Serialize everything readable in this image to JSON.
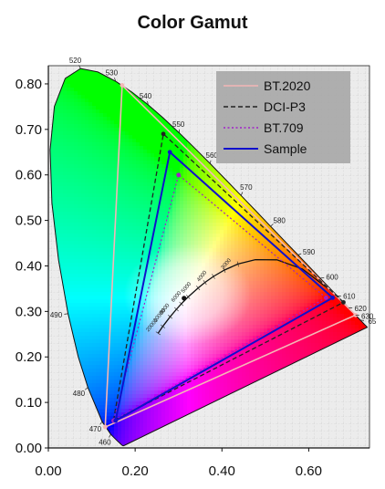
{
  "chart_data": {
    "type": "scatter",
    "title": "Color Gamut",
    "xlabel": "",
    "ylabel": "",
    "xlim": [
      0.0,
      0.74
    ],
    "ylim": [
      0.0,
      0.84
    ],
    "grid": true,
    "legend_position": "top-right",
    "x_ticks": [
      "0.00",
      "0.20",
      "0.40",
      "0.60"
    ],
    "x_tick_values": [
      0.0,
      0.2,
      0.4,
      0.6
    ],
    "y_ticks": [
      "0.00",
      "0.10",
      "0.20",
      "0.30",
      "0.40",
      "0.50",
      "0.60",
      "0.70",
      "0.80"
    ],
    "y_tick_values": [
      0.0,
      0.1,
      0.2,
      0.3,
      0.4,
      0.5,
      0.6,
      0.7,
      0.8
    ],
    "series": [
      {
        "name": "BT.2020",
        "color": "#f4b6b6",
        "dash": "solid",
        "points": [
          [
            0.708,
            0.292
          ],
          [
            0.17,
            0.797
          ],
          [
            0.131,
            0.046
          ]
        ]
      },
      {
        "name": "DCI-P3",
        "color": "#222222",
        "dash": "dashed",
        "points": [
          [
            0.68,
            0.32
          ],
          [
            0.265,
            0.69
          ],
          [
            0.15,
            0.06
          ]
        ]
      },
      {
        "name": "BT.709",
        "color": "#a020c8",
        "dash": "dotted",
        "points": [
          [
            0.64,
            0.33
          ],
          [
            0.3,
            0.6
          ],
          [
            0.15,
            0.06
          ]
        ]
      },
      {
        "name": "Sample",
        "color": "#1010cc",
        "dash": "solid",
        "points": [
          [
            0.655,
            0.33
          ],
          [
            0.28,
            0.65
          ],
          [
            0.155,
            0.06
          ]
        ]
      }
    ],
    "spectral_locus": [
      [
        0.1741,
        0.005
      ],
      [
        0.173,
        0.0048
      ],
      [
        0.1714,
        0.0051
      ],
      [
        0.1689,
        0.0069
      ],
      [
        0.1644,
        0.0109
      ],
      [
        0.1566,
        0.0177
      ],
      [
        0.144,
        0.0297
      ],
      [
        0.1241,
        0.0578
      ],
      [
        0.0913,
        0.1327
      ],
      [
        0.0687,
        0.2007
      ],
      [
        0.0454,
        0.295
      ],
      [
        0.0235,
        0.4127
      ],
      [
        0.0082,
        0.5384
      ],
      [
        0.0039,
        0.6548
      ],
      [
        0.0139,
        0.7502
      ],
      [
        0.0389,
        0.812
      ],
      [
        0.0743,
        0.8338
      ],
      [
        0.1142,
        0.8262
      ],
      [
        0.1547,
        0.8059
      ],
      [
        0.1929,
        0.7816
      ],
      [
        0.2296,
        0.7543
      ],
      [
        0.2658,
        0.7243
      ],
      [
        0.3016,
        0.6923
      ],
      [
        0.3373,
        0.6589
      ],
      [
        0.3731,
        0.6245
      ],
      [
        0.4087,
        0.5896
      ],
      [
        0.4441,
        0.5547
      ],
      [
        0.4788,
        0.5202
      ],
      [
        0.5125,
        0.4866
      ],
      [
        0.5448,
        0.4544
      ],
      [
        0.5752,
        0.4242
      ],
      [
        0.6029,
        0.3965
      ],
      [
        0.627,
        0.3725
      ],
      [
        0.6482,
        0.3514
      ],
      [
        0.6658,
        0.334
      ],
      [
        0.6801,
        0.3197
      ],
      [
        0.6915,
        0.3083
      ],
      [
        0.7006,
        0.2993
      ],
      [
        0.7079,
        0.292
      ],
      [
        0.714,
        0.2859
      ],
      [
        0.719,
        0.2809
      ],
      [
        0.723,
        0.277
      ],
      [
        0.726,
        0.274
      ],
      [
        0.7283,
        0.2717
      ],
      [
        0.73,
        0.27
      ],
      [
        0.7311,
        0.2689
      ],
      [
        0.732,
        0.268
      ],
      [
        0.7327,
        0.2673
      ],
      [
        0.7334,
        0.2666
      ],
      [
        0.734,
        0.266
      ],
      [
        0.7344,
        0.2656
      ],
      [
        0.7346,
        0.2654
      ],
      [
        0.7347,
        0.2653
      ]
    ],
    "planckian_locus": [
      [
        0.6528,
        0.3444
      ],
      [
        0.5857,
        0.3931
      ],
      [
        0.5267,
        0.4133
      ],
      [
        0.477,
        0.4137
      ],
      [
        0.4369,
        0.4041
      ],
      [
        0.4053,
        0.3907
      ],
      [
        0.3805,
        0.3768
      ],
      [
        0.3608,
        0.3636
      ],
      [
        0.3451,
        0.3516
      ],
      [
        0.3221,
        0.3318
      ],
      [
        0.3064,
        0.3166
      ],
      [
        0.2952,
        0.3048
      ],
      [
        0.2807,
        0.2883
      ],
      [
        0.2637,
        0.2671
      ],
      [
        0.253,
        0.252
      ]
    ],
    "wavelength_labels": [
      {
        "text": "460",
        "x": 0.144,
        "y": 0.03
      },
      {
        "text": "470",
        "x": 0.124,
        "y": 0.058
      },
      {
        "text": "480",
        "x": 0.091,
        "y": 0.133
      },
      {
        "text": "490",
        "x": 0.045,
        "y": 0.295
      },
      {
        "text": "520",
        "x": 0.074,
        "y": 0.834
      },
      {
        "text": "530",
        "x": 0.155,
        "y": 0.806
      },
      {
        "text": "540",
        "x": 0.23,
        "y": 0.754
      },
      {
        "text": "550",
        "x": 0.302,
        "y": 0.692
      },
      {
        "text": "560",
        "x": 0.373,
        "y": 0.624
      },
      {
        "text": "570",
        "x": 0.444,
        "y": 0.555
      },
      {
        "text": "580",
        "x": 0.512,
        "y": 0.487
      },
      {
        "text": "590",
        "x": 0.575,
        "y": 0.424
      },
      {
        "text": "600",
        "x": 0.627,
        "y": 0.373
      },
      {
        "text": "610",
        "x": 0.666,
        "y": 0.334
      },
      {
        "text": "620",
        "x": 0.692,
        "y": 0.308
      },
      {
        "text": "630",
        "x": 0.708,
        "y": 0.292
      },
      {
        "text": "65",
        "x": 0.719,
        "y": 0.281
      }
    ],
    "cct_labels": [
      {
        "text": "3000",
        "x": 0.437,
        "y": 0.404
      },
      {
        "text": "4000",
        "x": 0.381,
        "y": 0.377
      },
      {
        "text": "5000",
        "x": 0.345,
        "y": 0.352
      },
      {
        "text": "6000",
        "x": 0.322,
        "y": 0.332
      },
      {
        "text": "8000",
        "x": 0.295,
        "y": 0.305
      },
      {
        "text": "10000",
        "x": 0.281,
        "y": 0.288
      },
      {
        "text": "20000",
        "x": 0.264,
        "y": 0.267
      }
    ],
    "white_point": [
      0.3127,
      0.329
    ],
    "white_point_marker": "x",
    "white_point_color": "#111111"
  }
}
